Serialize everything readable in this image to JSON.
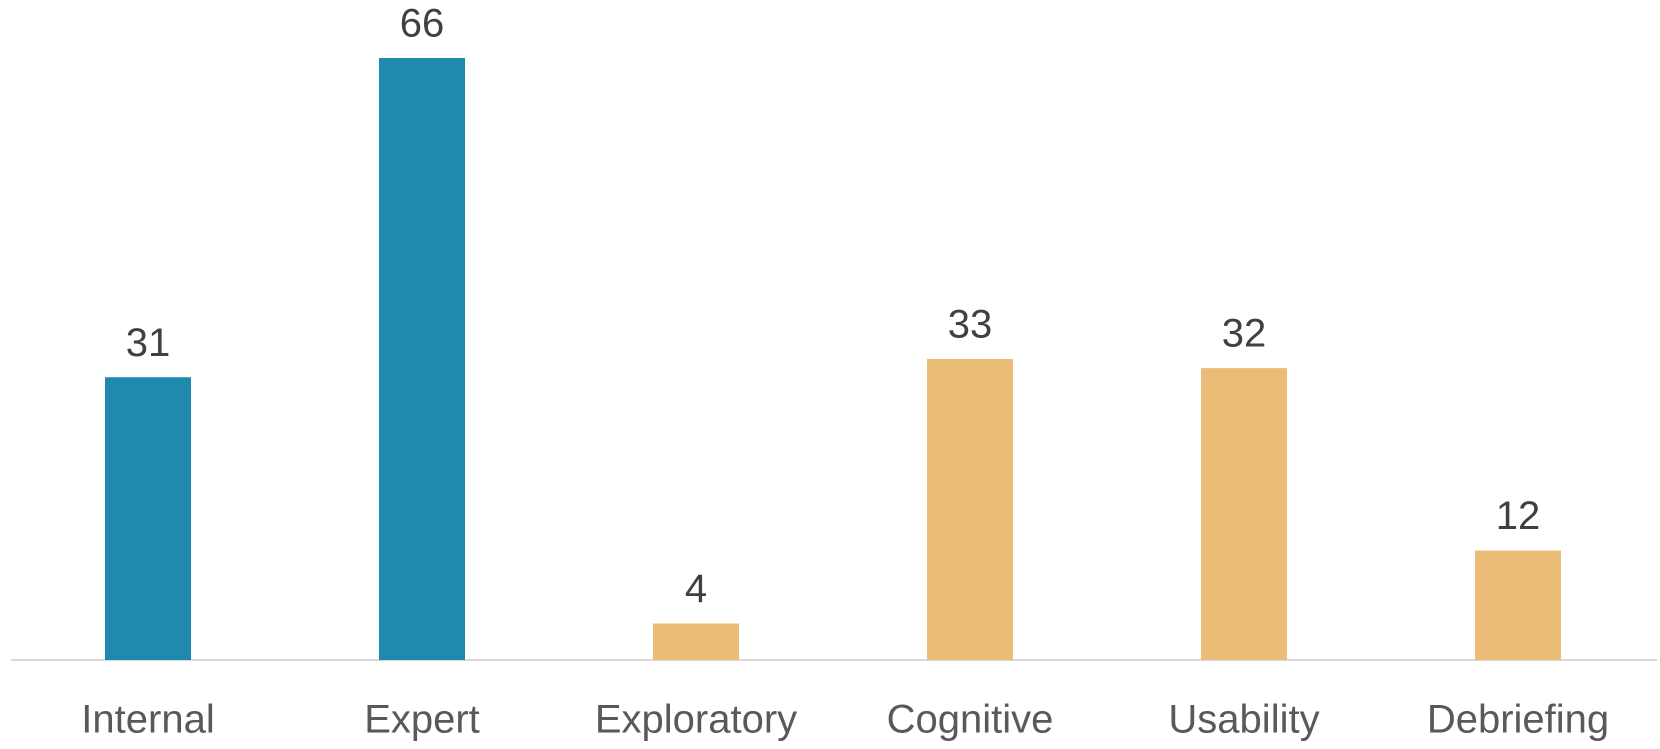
{
  "chart_data": {
    "type": "bar",
    "categories": [
      "Internal",
      "Expert",
      "Exploratory",
      "Cognitive",
      "Usability",
      "Debriefing"
    ],
    "values": [
      31,
      66,
      4,
      33,
      32,
      12
    ],
    "colors": [
      "#1f8aad",
      "#1f8aad",
      "#ebbb78",
      "#ebbb78",
      "#ebbb78",
      "#ebbb78"
    ],
    "ylim": [
      0,
      66
    ]
  }
}
